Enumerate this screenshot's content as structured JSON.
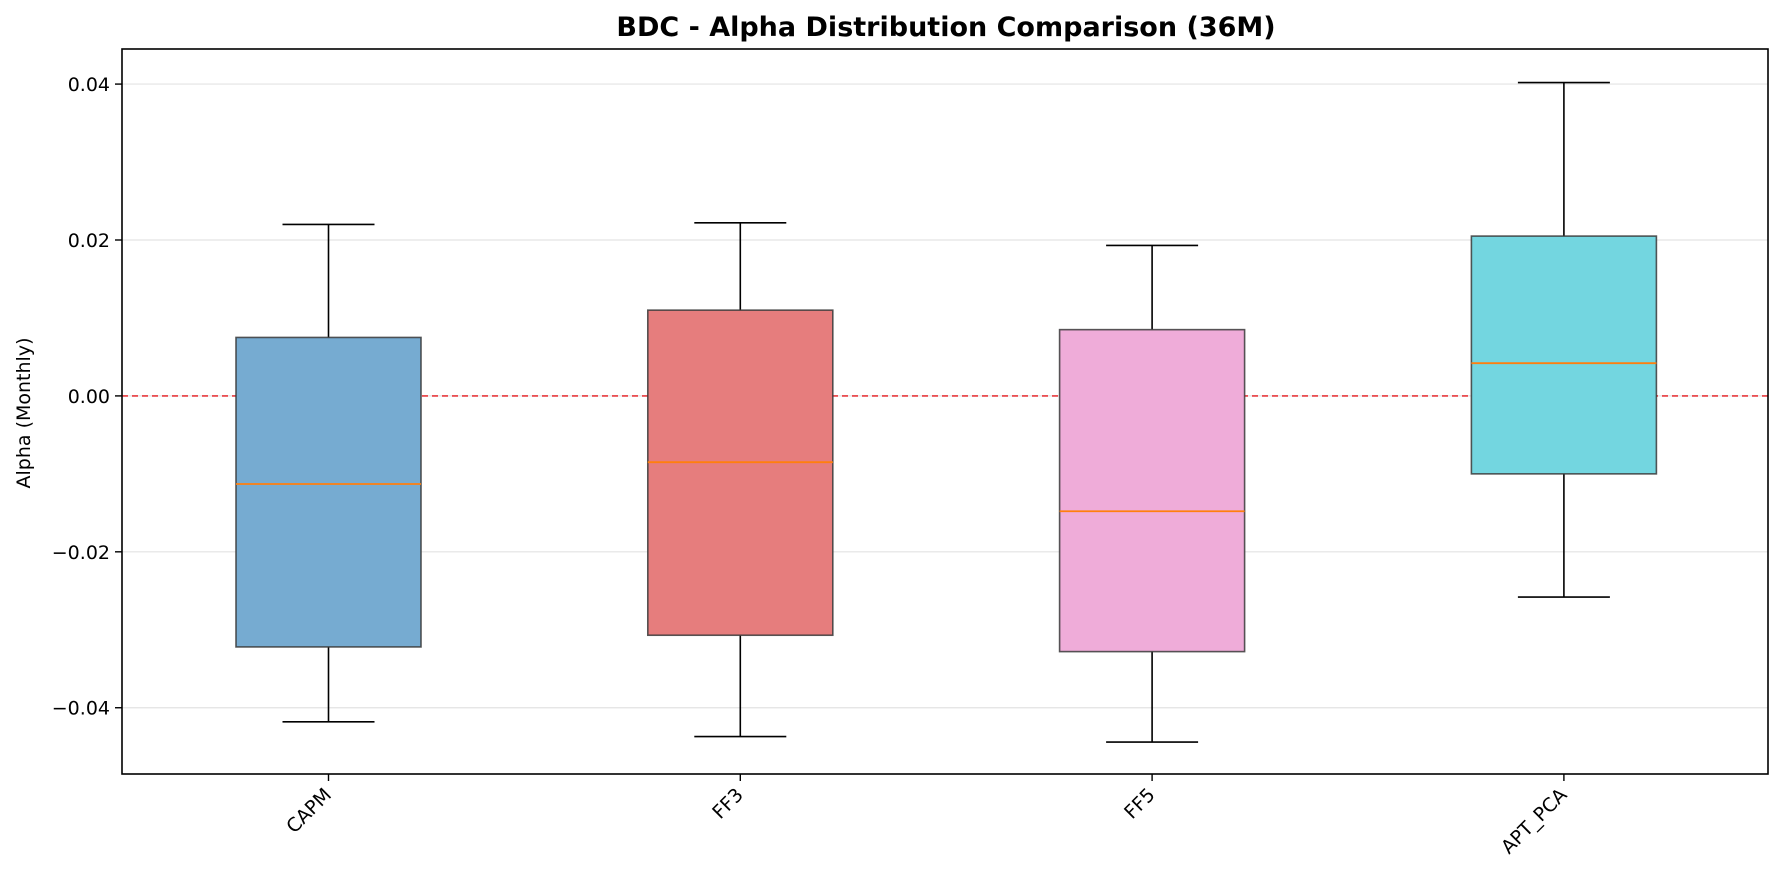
{
  "chart_data": {
    "type": "box",
    "title": "BDC - Alpha Distribution Comparison (36M)",
    "xlabel": "",
    "ylabel": "Alpha (Monthly)",
    "ylim": [
      -0.0485,
      0.0445
    ],
    "yticks": [
      -0.04,
      -0.02,
      0.0,
      0.02,
      0.04
    ],
    "ytick_labels": [
      "−0.04",
      "−0.02",
      "0.00",
      "0.02",
      "0.04"
    ],
    "grid": "horizontal",
    "reference_line": {
      "y": 0.0,
      "color": "#e8272a",
      "style": "dashed"
    },
    "median_color": "#ff7f0e",
    "categories": [
      "CAPM",
      "FF3",
      "FF5",
      "APT_PCA"
    ],
    "boxes": [
      {
        "label": "CAPM",
        "whisker_low": -0.0418,
        "q1": -0.0322,
        "median": -0.0113,
        "q3": 0.0075,
        "whisker_high": 0.022,
        "color": "#76abd1"
      },
      {
        "label": "FF3",
        "whisker_low": -0.0437,
        "q1": -0.0307,
        "median": -0.0085,
        "q3": 0.011,
        "whisker_high": 0.0222,
        "color": "#e67d7d"
      },
      {
        "label": "FF5",
        "whisker_low": -0.0444,
        "q1": -0.0328,
        "median": -0.0148,
        "q3": 0.0085,
        "whisker_high": 0.0193,
        "color": "#efacd9"
      },
      {
        "label": "APT_PCA",
        "whisker_low": -0.0258,
        "q1": -0.01,
        "median": 0.0042,
        "q3": 0.0205,
        "whisker_high": 0.0402,
        "color": "#73d6e0"
      }
    ]
  }
}
